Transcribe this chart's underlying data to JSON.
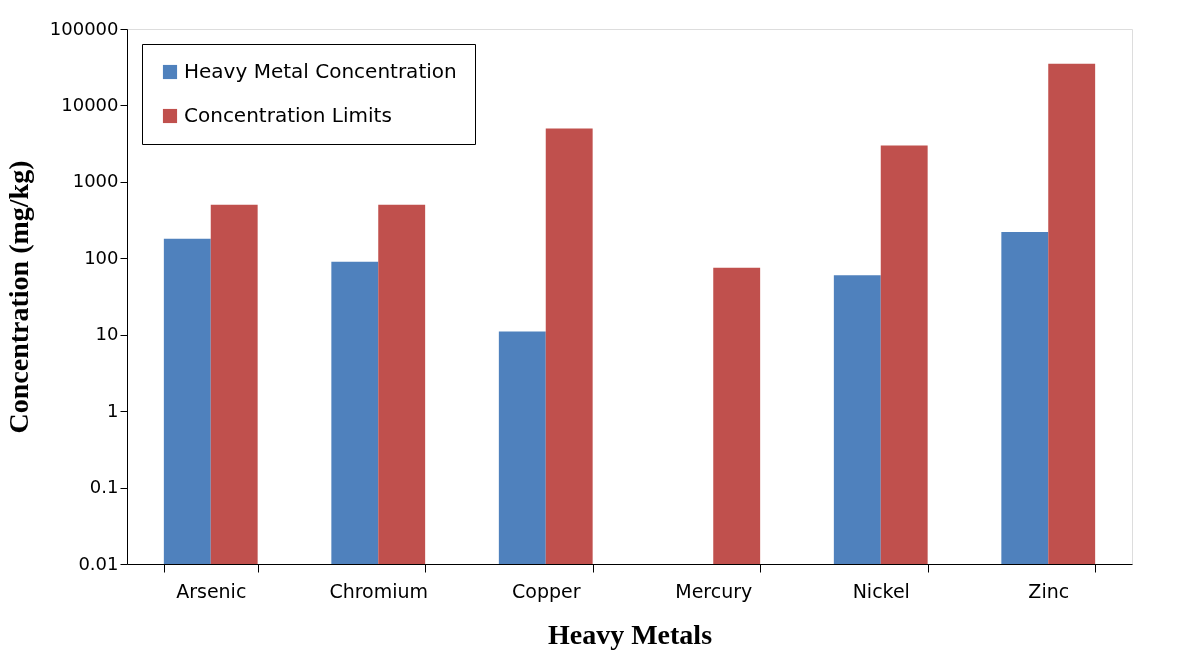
{
  "chart_data": {
    "type": "bar",
    "xlabel": "Heavy Metals",
    "ylabel": "Concentration (mg/kg)",
    "categories": [
      "Arsenic",
      "Chromium",
      "Copper",
      "Mercury",
      "Nickel",
      "Zinc"
    ],
    "series": [
      {
        "name": "Heavy Metal Concentration",
        "color": "#4f81bd",
        "values": [
          180,
          90,
          11,
          null,
          60,
          220
        ]
      },
      {
        "name": "Concentration Limits",
        "color": "#c0504d",
        "values": [
          500,
          500,
          5000,
          75,
          3000,
          35000
        ]
      }
    ],
    "log": true,
    "ylim": [
      0.01,
      100000
    ],
    "yticks": [
      0.01,
      0.1,
      1,
      10,
      100,
      1000,
      10000,
      100000
    ],
    "grid": false,
    "legend": "top left"
  }
}
